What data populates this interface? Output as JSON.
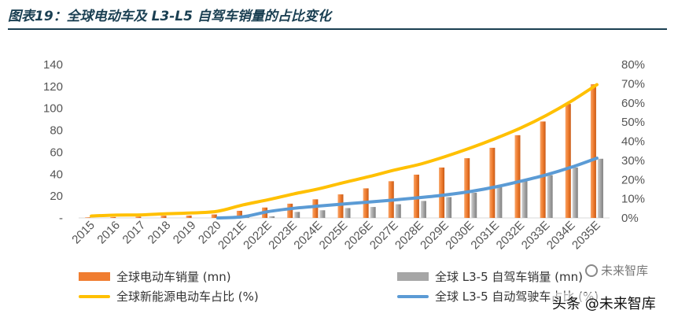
{
  "figure": {
    "title": "图表19：全球电动车及 L3-L5 自驾车销量的占比变化"
  },
  "chart_data": {
    "type": "bar+line",
    "title": "图表19：全球电动车及 L3-L5 自驾车销量的占比变化",
    "categories": [
      "2015",
      "2016",
      "2017",
      "2018",
      "2019",
      "2020",
      "2021E",
      "2022E",
      "2023E",
      "2024E",
      "2025E",
      "2026E",
      "2027E",
      "2028E",
      "2029E",
      "2030E",
      "2031E",
      "2032E",
      "2033E",
      "2034E",
      "2035E"
    ],
    "y_left": {
      "ylim": [
        0,
        140
      ],
      "ticks": [
        "-",
        "20",
        "40",
        "60",
        "80",
        "100",
        "120",
        "140"
      ]
    },
    "y_right": {
      "ylim": [
        0,
        80
      ],
      "ticks": [
        "0%",
        "10%",
        "20%",
        "30%",
        "40%",
        "50%",
        "60%",
        "70%",
        "80%"
      ]
    },
    "series": [
      {
        "name": "全球电动车销量 (mn)",
        "type": "bar",
        "axis": "left",
        "color": "#f07d30",
        "values": [
          0.5,
          0.8,
          1.2,
          2.0,
          2.2,
          3.2,
          6.5,
          9.5,
          13,
          17,
          21.5,
          27,
          33.5,
          39.5,
          46,
          54.5,
          64,
          75.5,
          88,
          104,
          122
        ]
      },
      {
        "name": "全球 L3-5 自驾车销量 (mn)",
        "type": "bar",
        "axis": "left",
        "color": "#a6a6a6",
        "values": [
          0,
          0,
          0,
          0,
          0,
          0,
          0.5,
          1.5,
          5.5,
          7,
          9,
          10,
          12.5,
          15.5,
          19,
          23,
          28,
          33.5,
          39,
          46,
          54
        ]
      },
      {
        "name": "全球新能源电动车占比 (%)",
        "type": "line",
        "axis": "right",
        "color": "#ffc000",
        "values": [
          1.0,
          1.5,
          1.6,
          2.2,
          2.6,
          3.5,
          6.8,
          9.5,
          12.5,
          15.2,
          18.5,
          21.6,
          25.0,
          28.0,
          32.0,
          36.5,
          41.5,
          47.0,
          53.5,
          61.0,
          69.5
        ]
      },
      {
        "name": "全球 L3-5 自动驾驶车占比 (%)",
        "type": "line",
        "axis": "right",
        "color": "#5b9bd5",
        "values": [
          null,
          null,
          null,
          null,
          null,
          0.0,
          0.6,
          3.3,
          5.0,
          6.2,
          7.3,
          8.3,
          9.4,
          10.6,
          12.0,
          13.8,
          16.2,
          19.2,
          22.5,
          26.5,
          31.2
        ]
      }
    ]
  },
  "legend": [
    {
      "label": "全球电动车销量 (mn)",
      "kind": "bar",
      "color": "#f07d30"
    },
    {
      "label": "全球 L3-5 自驾车销量 (mn)",
      "kind": "bar",
      "color": "#a6a6a6"
    },
    {
      "label": "全球新能源电动车占比 (%)",
      "kind": "line",
      "color": "#ffc000"
    },
    {
      "label": "全球 L3-5 自动驾驶车占比 (%)",
      "kind": "line",
      "color": "#5b9bd5"
    }
  ],
  "watermark": {
    "brand": "未来智库",
    "text": "头条 @未来智库"
  }
}
